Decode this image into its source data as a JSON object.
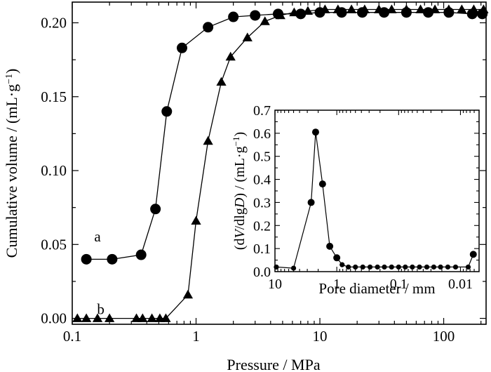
{
  "chart_data": [
    {
      "type": "line",
      "xscale": "log",
      "xlabel": "Pressure / MPa",
      "ylabel": "Cumulative volume / (mL·g",
      "ylabel_sup": "−1",
      "ylabel_close": ")",
      "xlim": [
        0.1,
        220
      ],
      "ylim": [
        -0.004,
        0.214
      ],
      "xticks": [
        {
          "v": 0.1,
          "label": "0.1"
        },
        {
          "v": 1,
          "label": "1"
        },
        {
          "v": 10,
          "label": "10"
        },
        {
          "v": 100,
          "label": "100"
        }
      ],
      "yticks": [
        {
          "v": 0.0,
          "label": "0.00"
        },
        {
          "v": 0.05,
          "label": "0.05"
        },
        {
          "v": 0.1,
          "label": "0.10"
        },
        {
          "v": 0.15,
          "label": "0.15"
        },
        {
          "v": 0.2,
          "label": "0.20"
        }
      ],
      "series": [
        {
          "name": "a",
          "marker": "circle",
          "label_at": [
            0.16,
            0.052
          ],
          "x": [
            0.13,
            0.21,
            0.36,
            0.47,
            0.58,
            0.77,
            1.25,
            2.0,
            3.0,
            4.6,
            7.0,
            10,
            15,
            22,
            33,
            50,
            75,
            110,
            170,
            205
          ],
          "y": [
            0.04,
            0.04,
            0.043,
            0.074,
            0.14,
            0.183,
            0.197,
            0.204,
            0.205,
            0.206,
            0.206,
            0.207,
            0.207,
            0.207,
            0.207,
            0.207,
            0.207,
            0.207,
            0.206,
            0.206
          ]
        },
        {
          "name": "b",
          "marker": "triangle",
          "label_at": [
            0.17,
            0.003
          ],
          "x": [
            0.11,
            0.13,
            0.16,
            0.2,
            0.33,
            0.37,
            0.44,
            0.51,
            0.57,
            0.86,
            1.0,
            1.25,
            1.6,
            1.9,
            2.6,
            3.6,
            4.8,
            6.2,
            8.0,
            11,
            14,
            18,
            23,
            30,
            38,
            50,
            65,
            85,
            110,
            140,
            175,
            210
          ],
          "y": [
            0.0,
            0.0,
            0.0,
            0.0,
            0.0,
            0.0,
            0.0,
            0.0,
            0.0,
            0.016,
            0.066,
            0.12,
            0.16,
            0.177,
            0.19,
            0.201,
            0.205,
            0.207,
            0.208,
            0.209,
            0.209,
            0.209,
            0.209,
            0.209,
            0.209,
            0.209,
            0.209,
            0.209,
            0.209,
            0.209,
            0.209,
            0.209
          ]
        }
      ]
    },
    {
      "type": "line",
      "xscale": "log",
      "xreversed": true,
      "xlabel": "Pore diameter / mm",
      "ylabel_parts": [
        "(d",
        "V",
        "/dlg",
        "D",
        ") / (mL·g",
        "−1",
        ")"
      ],
      "xlim": [
        10,
        0.005
      ],
      "ylim": [
        0,
        0.7
      ],
      "xticks": [
        {
          "v": 10,
          "label": "10"
        },
        {
          "v": 1,
          "label": "1"
        },
        {
          "v": 0.1,
          "label": "0.1"
        },
        {
          "v": 0.01,
          "label": "0.01"
        }
      ],
      "yticks": [
        {
          "v": 0.0,
          "label": "0.0"
        },
        {
          "v": 0.1,
          "label": "0.1"
        },
        {
          "v": 0.2,
          "label": "0.2"
        },
        {
          "v": 0.3,
          "label": "0.3"
        },
        {
          "v": 0.4,
          "label": "0.4"
        },
        {
          "v": 0.5,
          "label": "0.5"
        },
        {
          "v": 0.6,
          "label": "0.6"
        },
        {
          "v": 0.7,
          "label": "0.7"
        }
      ],
      "series": [
        {
          "marker": "circle",
          "x": [
            9.5,
            5.0,
            2.6,
            2.2,
            1.7,
            1.3,
            1.0,
            0.82,
            0.65,
            0.5,
            0.38,
            0.29,
            0.22,
            0.17,
            0.13,
            0.1,
            0.078,
            0.06,
            0.046,
            0.035,
            0.027,
            0.021,
            0.016,
            0.012,
            0.0075,
            0.0062
          ],
          "y": [
            0.02,
            0.015,
            0.3,
            0.605,
            0.38,
            0.11,
            0.06,
            0.03,
            0.02,
            0.02,
            0.02,
            0.02,
            0.02,
            0.02,
            0.02,
            0.02,
            0.02,
            0.02,
            0.02,
            0.02,
            0.02,
            0.02,
            0.02,
            0.02,
            0.02,
            0.075
          ]
        }
      ]
    }
  ]
}
